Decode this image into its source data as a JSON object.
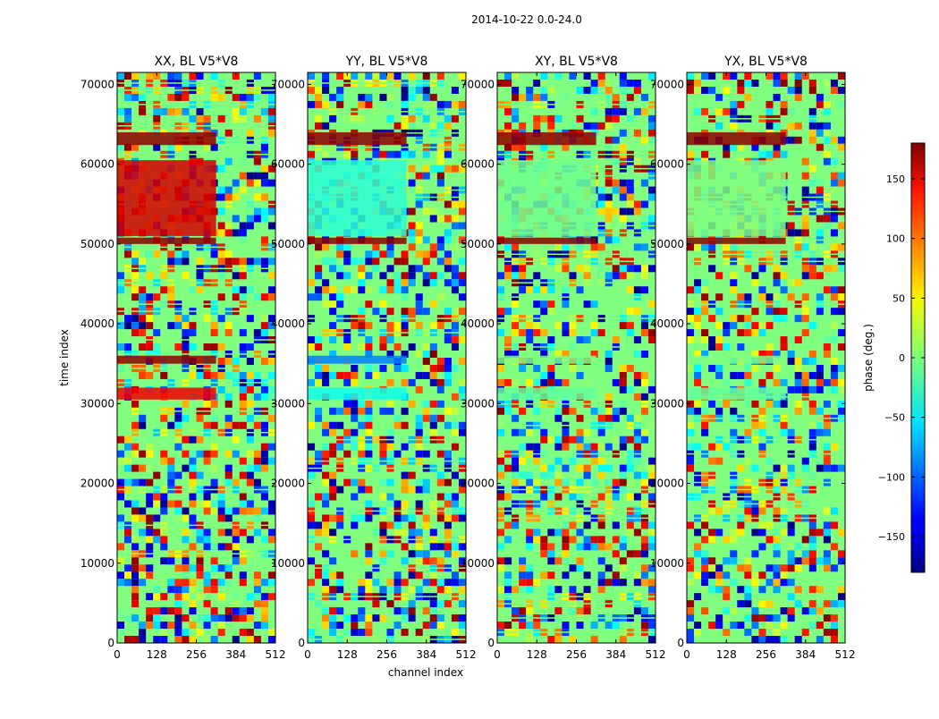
{
  "chart_data": {
    "type": "heatmap",
    "title": "2014-10-22 0.0-24.0",
    "xlabel": "channel index",
    "ylabel": "time index",
    "xlim": [
      0,
      512
    ],
    "ylim": [
      0,
      71500
    ],
    "x_ticks": [
      0,
      128,
      256,
      384,
      512
    ],
    "y_ticks": [
      0,
      10000,
      20000,
      30000,
      40000,
      50000,
      60000,
      70000
    ],
    "colorscale": "jet",
    "panels": [
      {
        "title": "XX, BL V5*V8",
        "key": "XX"
      },
      {
        "title": "YY, BL V5*V8",
        "key": "YY"
      },
      {
        "title": "XY, BL V5*V8",
        "key": "XY"
      },
      {
        "title": "YX, BL V5*V8",
        "key": "YX"
      }
    ],
    "colorbar": {
      "label": "phase (deg.)",
      "range": [
        -180,
        180
      ],
      "ticks": [
        150,
        100,
        50,
        0,
        -50,
        -100,
        -150
      ],
      "tick_labels": [
        "150",
        "100",
        "50",
        "0",
        "−50",
        "−100",
        "−150"
      ]
    },
    "coherent_bands": [
      {
        "t0": 62400,
        "t1": 64000,
        "phase_XX": 175,
        "phase_YY": 175,
        "phase_XY": 175,
        "phase_YX": 175
      },
      {
        "t0": 51000,
        "t1": 60500,
        "phase_XX": 150,
        "phase_YY": -30,
        "phase_XY": -5,
        "phase_YX": 0
      },
      {
        "t0": 50000,
        "t1": 50800,
        "phase_XX": 175,
        "phase_YY": 175,
        "phase_XY": 175,
        "phase_YX": 175
      },
      {
        "t0": 35000,
        "t1": 36000,
        "phase_XX": 175,
        "phase_YY": -90,
        "phase_XY": 0,
        "phase_YX": 0
      },
      {
        "t0": 30500,
        "t1": 32000,
        "phase_XX": 140,
        "phase_YY": -40,
        "phase_XY": -10,
        "phase_YX": -10
      }
    ]
  }
}
